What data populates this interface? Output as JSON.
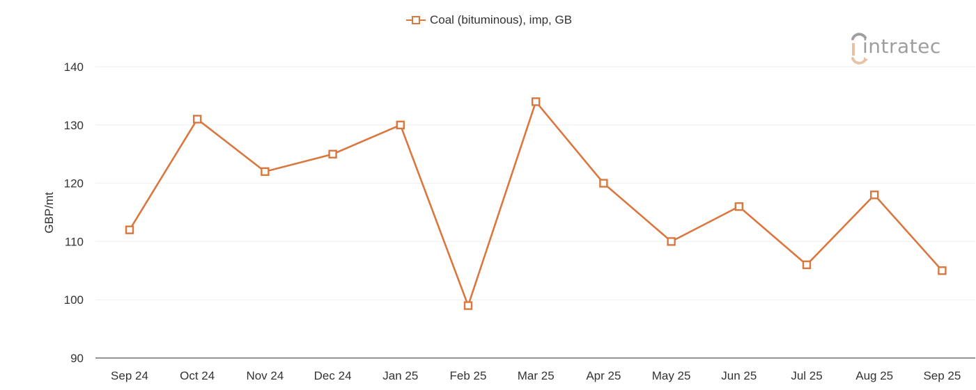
{
  "legend": {
    "label": "Coal (bituminous), imp, GB",
    "color": "#d9773f"
  },
  "logo": {
    "text": "intratec",
    "accent_color": "#e8c2a6",
    "text_color": "#9e9e9e"
  },
  "axes": {
    "y_title": "GBP/mt",
    "y_ticks": [
      "140",
      "130",
      "120",
      "110",
      "100",
      "90"
    ],
    "x_ticks": [
      "Sep 24",
      "Oct 24",
      "Nov 24",
      "Dec 24",
      "Jan 25",
      "Feb 25",
      "Mar 25",
      "Apr 25",
      "May 25",
      "Jun 25",
      "Jul 25",
      "Aug 25",
      "Sep 25"
    ]
  },
  "chart_data": {
    "type": "line",
    "title": "",
    "xlabel": "",
    "ylabel": "GBP/mt",
    "categories": [
      "Sep 24",
      "Oct 24",
      "Nov 24",
      "Dec 24",
      "Jan 25",
      "Feb 25",
      "Mar 25",
      "Apr 25",
      "May 25",
      "Jun 25",
      "Jul 25",
      "Aug 25",
      "Sep 25"
    ],
    "series": [
      {
        "name": "Coal (bituminous), imp, GB",
        "color": "#d9773f",
        "marker": "hollow-square",
        "values": [
          112,
          131,
          122,
          125,
          130,
          99,
          134,
          120,
          110,
          116,
          106,
          118,
          105
        ]
      }
    ],
    "ylim": [
      90,
      140
    ],
    "yticks": [
      90,
      100,
      110,
      120,
      130,
      140
    ],
    "grid": true,
    "legend_position": "top-center"
  }
}
